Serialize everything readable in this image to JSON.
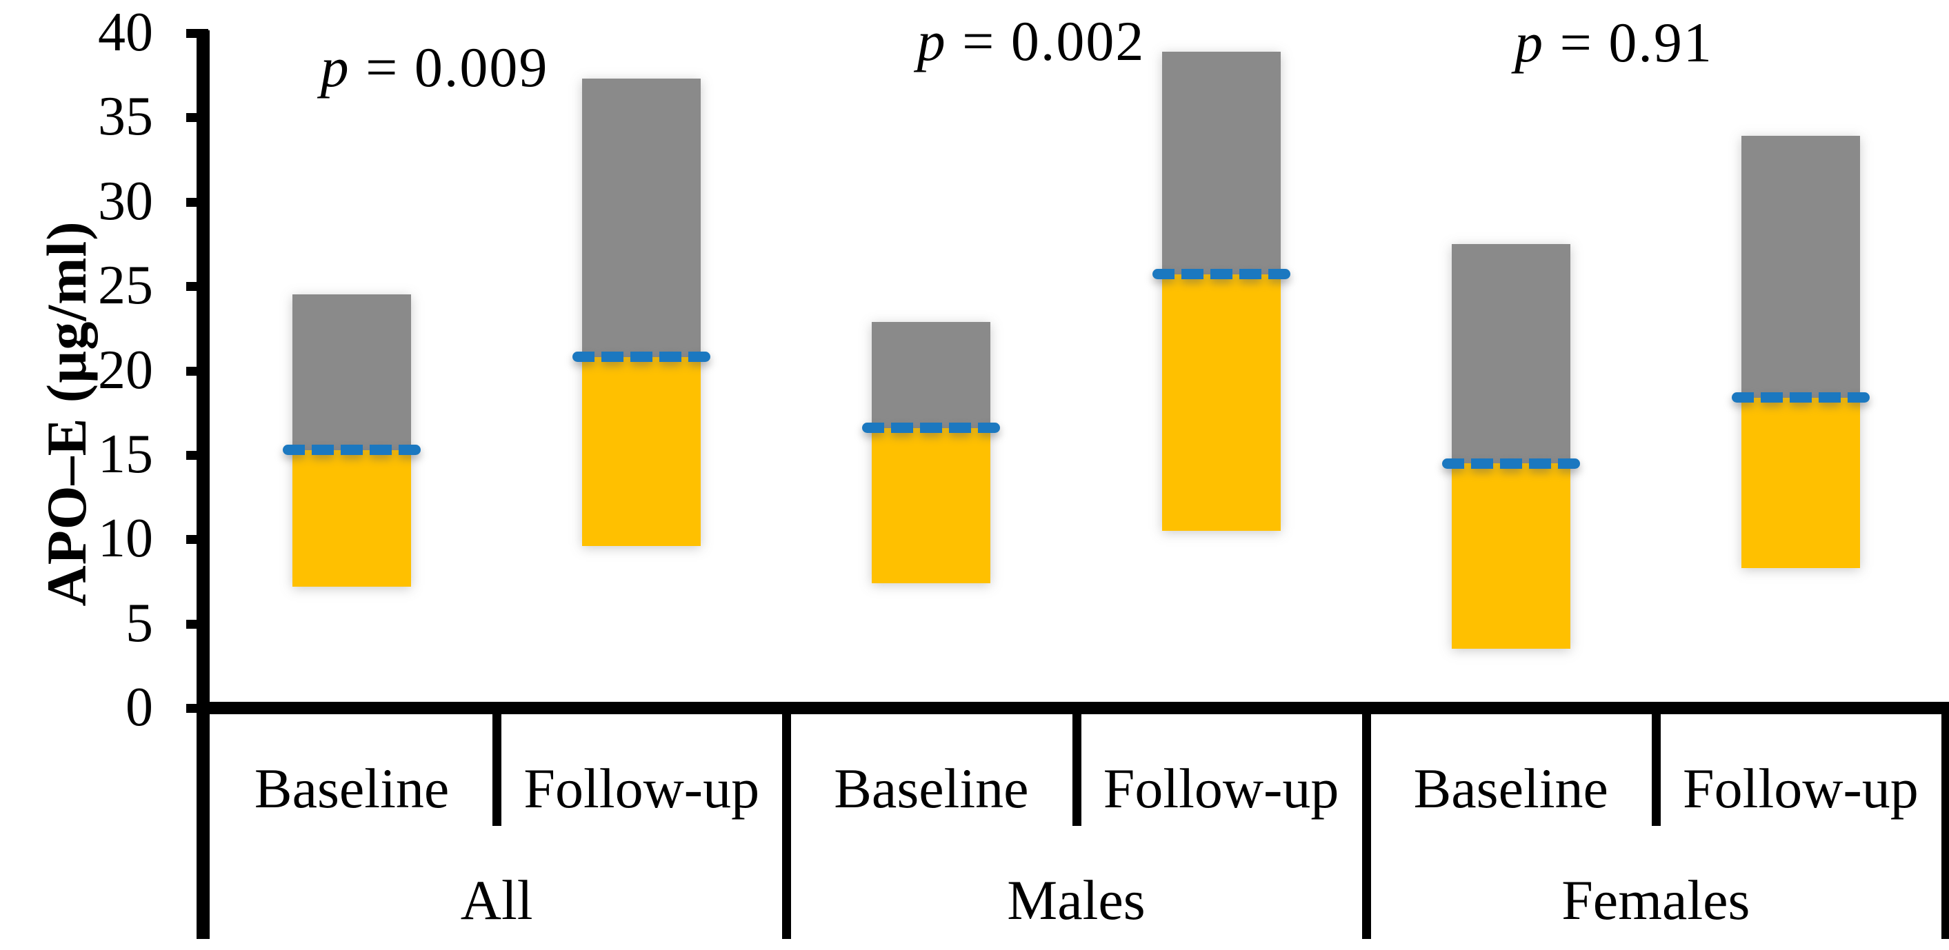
{
  "chart_data": {
    "type": "bar",
    "subtype": "floating-range-bars-with-median",
    "title": "",
    "xlabel": "",
    "ylabel": "APO–E (µg/ml)",
    "ylim": [
      0,
      40
    ],
    "ytick_step": 5,
    "y_ticks": [
      40,
      35,
      30,
      25,
      20,
      15,
      10,
      5,
      0
    ],
    "grid": false,
    "legend_position": "none",
    "categories": [
      "Baseline",
      "Follow-up"
    ],
    "groups": [
      {
        "label": "All",
        "p_text": "p = 0.009",
        "bars": [
          {
            "label": "Baseline",
            "low": 7.2,
            "median": 15.3,
            "high": 24.5
          },
          {
            "label": "Follow-up",
            "low": 9.6,
            "median": 20.8,
            "high": 37.3
          }
        ]
      },
      {
        "label": "Males",
        "p_text": "p = 0.002",
        "bars": [
          {
            "label": "Baseline",
            "low": 7.4,
            "median": 16.6,
            "high": 22.9
          },
          {
            "label": "Follow-up",
            "low": 10.5,
            "median": 25.7,
            "high": 38.9
          }
        ]
      },
      {
        "label": "Females",
        "p_text": "p = 0.91",
        "bars": [
          {
            "label": "Baseline",
            "low": 3.5,
            "median": 14.5,
            "high": 27.5
          },
          {
            "label": "Follow-up",
            "low": 8.3,
            "median": 18.4,
            "high": 33.9
          }
        ]
      }
    ],
    "colors": {
      "upper_segment": "#8A8A8A",
      "lower_segment": "#FFC000",
      "median_dash": "#1B78C0",
      "axis": "#000000",
      "text": "#000000"
    }
  }
}
